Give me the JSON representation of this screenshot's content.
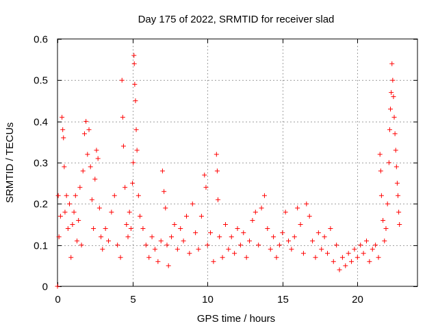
{
  "chart_data": {
    "type": "scatter",
    "title": "Day 175 of 2022, SRMTID for receiver slad",
    "xlabel": "GPS time / hours",
    "ylabel": "SRMTID / TECUs",
    "xlim": [
      0,
      24
    ],
    "ylim": [
      0,
      0.6
    ],
    "x_ticks": [
      0,
      5,
      10,
      15,
      20
    ],
    "y_ticks": [
      0,
      0.1,
      0.2,
      0.3,
      0.4,
      0.5,
      0.6
    ],
    "x_tick_labels": [
      "0",
      "5",
      "10",
      "15",
      "20"
    ],
    "y_tick_labels": [
      "0",
      "0.1",
      "0.2",
      "0.3",
      "0.4",
      "0.5",
      "0.6"
    ],
    "grid": true,
    "marker": "+",
    "series": [
      {
        "name": "SRMTID",
        "color": "#ff0000",
        "points": [
          [
            0.0,
            0.0
          ],
          [
            0.05,
            0.22
          ],
          [
            0.1,
            0.12
          ],
          [
            0.2,
            0.17
          ],
          [
            0.3,
            0.41
          ],
          [
            0.35,
            0.38
          ],
          [
            0.4,
            0.36
          ],
          [
            0.45,
            0.29
          ],
          [
            0.5,
            0.18
          ],
          [
            0.6,
            0.22
          ],
          [
            0.7,
            0.14
          ],
          [
            0.8,
            0.2
          ],
          [
            0.9,
            0.07
          ],
          [
            1.0,
            0.15
          ],
          [
            1.1,
            0.18
          ],
          [
            1.2,
            0.22
          ],
          [
            1.3,
            0.11
          ],
          [
            1.4,
            0.16
          ],
          [
            1.5,
            0.24
          ],
          [
            1.6,
            0.1
          ],
          [
            1.7,
            0.28
          ],
          [
            1.8,
            0.37
          ],
          [
            1.9,
            0.4
          ],
          [
            2.0,
            0.32
          ],
          [
            2.1,
            0.38
          ],
          [
            2.2,
            0.29
          ],
          [
            2.3,
            0.21
          ],
          [
            2.4,
            0.14
          ],
          [
            2.5,
            0.26
          ],
          [
            2.6,
            0.33
          ],
          [
            2.7,
            0.31
          ],
          [
            2.8,
            0.19
          ],
          [
            2.9,
            0.12
          ],
          [
            3.0,
            0.09
          ],
          [
            3.2,
            0.14
          ],
          [
            3.4,
            0.11
          ],
          [
            3.6,
            0.18
          ],
          [
            3.8,
            0.22
          ],
          [
            4.0,
            0.1
          ],
          [
            4.2,
            0.07
          ],
          [
            4.3,
            0.5
          ],
          [
            4.35,
            0.41
          ],
          [
            4.4,
            0.34
          ],
          [
            4.5,
            0.24
          ],
          [
            4.6,
            0.15
          ],
          [
            4.7,
            0.12
          ],
          [
            4.8,
            0.18
          ],
          [
            4.9,
            0.14
          ],
          [
            5.0,
            0.25
          ],
          [
            5.05,
            0.3
          ],
          [
            5.1,
            0.56
          ],
          [
            5.12,
            0.54
          ],
          [
            5.15,
            0.49
          ],
          [
            5.2,
            0.45
          ],
          [
            5.25,
            0.38
          ],
          [
            5.3,
            0.33
          ],
          [
            5.4,
            0.22
          ],
          [
            5.5,
            0.17
          ],
          [
            5.7,
            0.14
          ],
          [
            5.9,
            0.1
          ],
          [
            6.1,
            0.07
          ],
          [
            6.3,
            0.12
          ],
          [
            6.5,
            0.09
          ],
          [
            6.7,
            0.06
          ],
          [
            6.9,
            0.11
          ],
          [
            7.0,
            0.28
          ],
          [
            7.1,
            0.23
          ],
          [
            7.2,
            0.19
          ],
          [
            7.3,
            0.1
          ],
          [
            7.4,
            0.05
          ],
          [
            7.6,
            0.12
          ],
          [
            7.8,
            0.15
          ],
          [
            8.0,
            0.09
          ],
          [
            8.2,
            0.14
          ],
          [
            8.4,
            0.11
          ],
          [
            8.6,
            0.17
          ],
          [
            8.8,
            0.08
          ],
          [
            9.0,
            0.2
          ],
          [
            9.2,
            0.13
          ],
          [
            9.4,
            0.09
          ],
          [
            9.6,
            0.17
          ],
          [
            9.8,
            0.27
          ],
          [
            9.9,
            0.24
          ],
          [
            10.0,
            0.1
          ],
          [
            10.2,
            0.13
          ],
          [
            10.4,
            0.06
          ],
          [
            10.6,
            0.32
          ],
          [
            10.65,
            0.28
          ],
          [
            10.7,
            0.21
          ],
          [
            10.8,
            0.12
          ],
          [
            11.0,
            0.07
          ],
          [
            11.2,
            0.15
          ],
          [
            11.4,
            0.09
          ],
          [
            11.6,
            0.12
          ],
          [
            11.8,
            0.08
          ],
          [
            12.0,
            0.14
          ],
          [
            12.2,
            0.1
          ],
          [
            12.4,
            0.13
          ],
          [
            12.6,
            0.07
          ],
          [
            12.8,
            0.11
          ],
          [
            13.0,
            0.16
          ],
          [
            13.2,
            0.18
          ],
          [
            13.4,
            0.1
          ],
          [
            13.6,
            0.19
          ],
          [
            13.8,
            0.22
          ],
          [
            14.0,
            0.14
          ],
          [
            14.2,
            0.09
          ],
          [
            14.4,
            0.12
          ],
          [
            14.6,
            0.07
          ],
          [
            14.8,
            0.1
          ],
          [
            15.0,
            0.13
          ],
          [
            15.2,
            0.18
          ],
          [
            15.4,
            0.11
          ],
          [
            15.6,
            0.09
          ],
          [
            15.8,
            0.12
          ],
          [
            16.0,
            0.19
          ],
          [
            16.2,
            0.15
          ],
          [
            16.4,
            0.08
          ],
          [
            16.6,
            0.2
          ],
          [
            16.8,
            0.17
          ],
          [
            17.0,
            0.11
          ],
          [
            17.2,
            0.07
          ],
          [
            17.4,
            0.13
          ],
          [
            17.6,
            0.09
          ],
          [
            17.8,
            0.12
          ],
          [
            18.0,
            0.08
          ],
          [
            18.2,
            0.14
          ],
          [
            18.4,
            0.06
          ],
          [
            18.6,
            0.1
          ],
          [
            18.8,
            0.04
          ],
          [
            19.0,
            0.07
          ],
          [
            19.2,
            0.05
          ],
          [
            19.4,
            0.08
          ],
          [
            19.6,
            0.06
          ],
          [
            19.8,
            0.09
          ],
          [
            20.0,
            0.07
          ],
          [
            20.2,
            0.1
          ],
          [
            20.4,
            0.08
          ],
          [
            20.6,
            0.11
          ],
          [
            20.8,
            0.06
          ],
          [
            21.0,
            0.09
          ],
          [
            21.2,
            0.1
          ],
          [
            21.4,
            0.07
          ],
          [
            21.5,
            0.32
          ],
          [
            21.55,
            0.28
          ],
          [
            21.6,
            0.22
          ],
          [
            21.7,
            0.16
          ],
          [
            21.8,
            0.11
          ],
          [
            21.9,
            0.14
          ],
          [
            22.0,
            0.2
          ],
          [
            22.1,
            0.3
          ],
          [
            22.15,
            0.38
          ],
          [
            22.2,
            0.43
          ],
          [
            22.25,
            0.47
          ],
          [
            22.3,
            0.54
          ],
          [
            22.35,
            0.5
          ],
          [
            22.4,
            0.46
          ],
          [
            22.45,
            0.41
          ],
          [
            22.5,
            0.37
          ],
          [
            22.55,
            0.33
          ],
          [
            22.6,
            0.29
          ],
          [
            22.65,
            0.25
          ],
          [
            22.7,
            0.22
          ],
          [
            22.75,
            0.18
          ],
          [
            22.8,
            0.15
          ]
        ]
      }
    ]
  }
}
